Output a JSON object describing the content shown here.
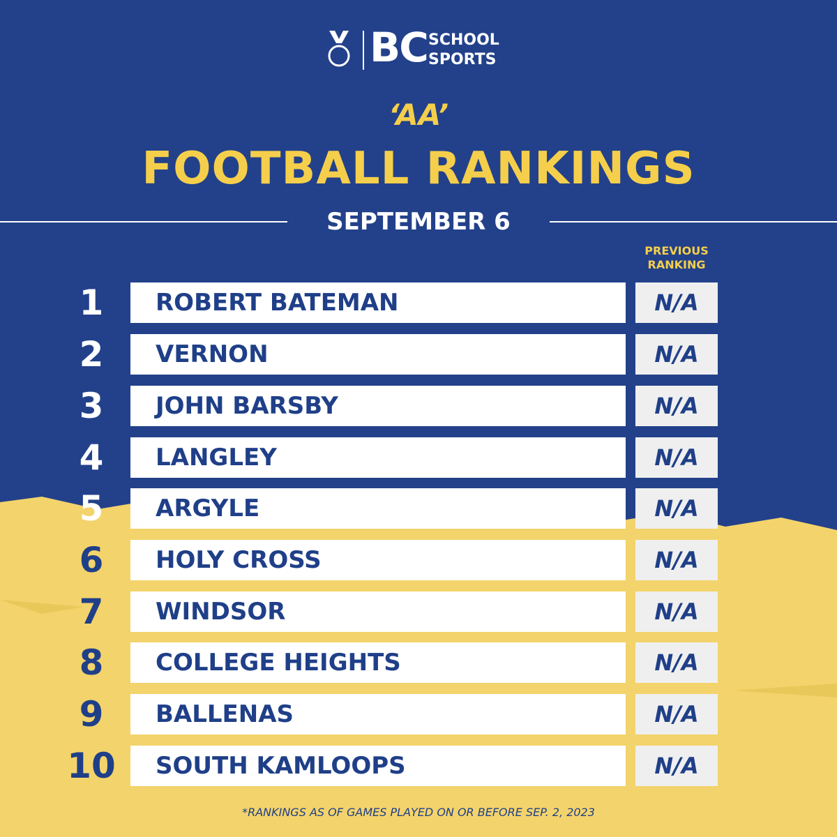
{
  "header": {
    "logo": {
      "mark": "BC",
      "line1": "SCHOOL",
      "line2": "SPORTS"
    },
    "division": "‘AA’",
    "title": "FOOTBALL RANKINGS",
    "date": "SEPTEMBER 6"
  },
  "table": {
    "column_header": "PREVIOUS RANKING",
    "rows": [
      [
        "1",
        "ROBERT BATEMAN",
        "N/A"
      ],
      [
        "2",
        "VERNON",
        "N/A"
      ],
      [
        "3",
        "JOHN BARSBY",
        "N/A"
      ],
      [
        "4",
        "LANGLEY",
        "N/A"
      ],
      [
        "5",
        "ARGYLE",
        "N/A"
      ],
      [
        "6",
        "HOLY CROSS",
        "N/A"
      ],
      [
        "7",
        "WINDSOR",
        "N/A"
      ],
      [
        "8",
        "COLLEGE HEIGHTS",
        "N/A"
      ],
      [
        "9",
        "BALLENAS",
        "N/A"
      ],
      [
        "10",
        "SOUTH KAMLOOPS",
        "N/A"
      ]
    ]
  },
  "footnote": "*RANKINGS AS OF GAMES PLAYED ON OR BEFORE SEP. 2, 2023"
}
